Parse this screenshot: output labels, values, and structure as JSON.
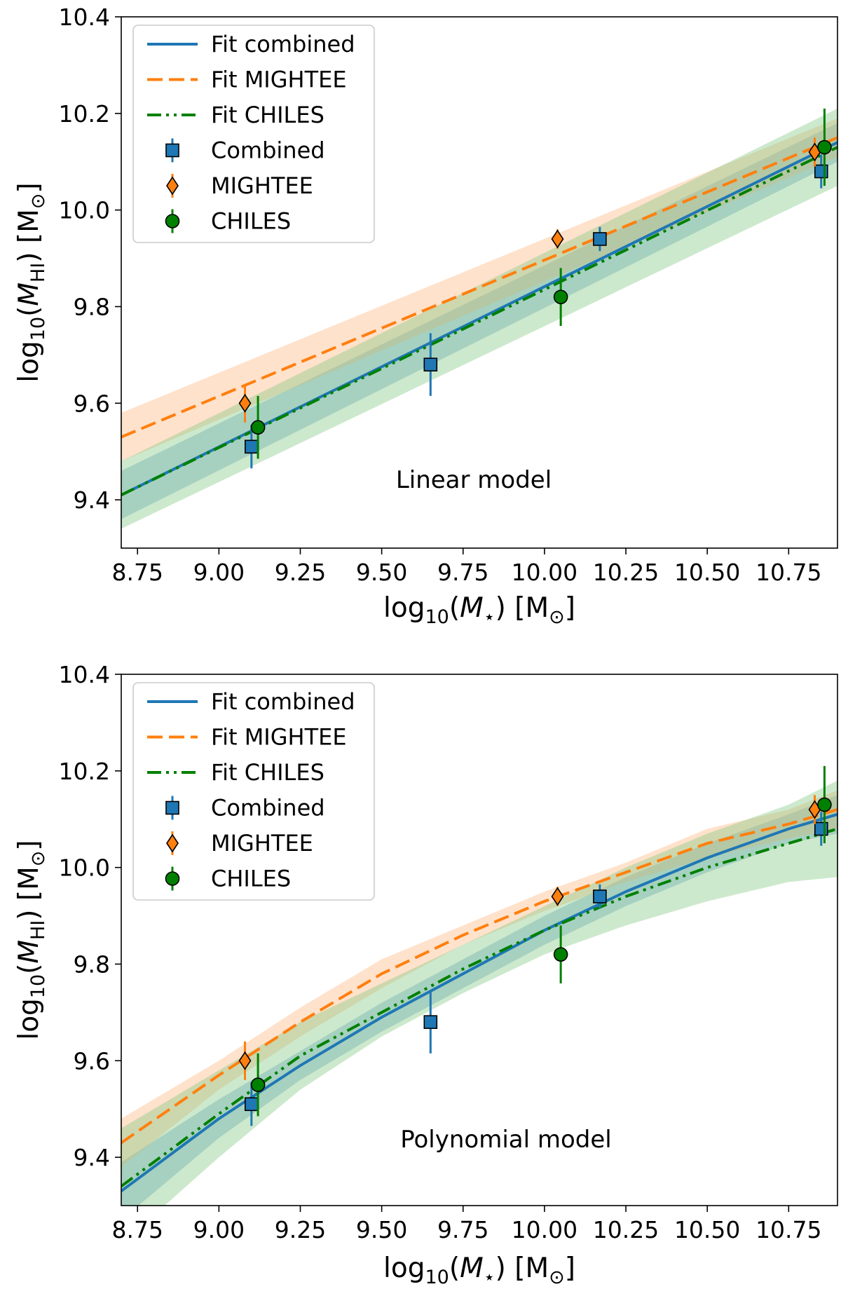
{
  "colors": {
    "combined": "#1f77b4",
    "mightee": "#ff7f0e",
    "chiles": "#008000",
    "combined_band": "#1f77b4",
    "mightee_band": "#ffb27a",
    "chiles_band": "#7cc47c"
  },
  "legend_labels": {
    "fit_combined": "Fit combined",
    "fit_mightee": "Fit MIGHTEE",
    "fit_chiles": "Fit CHILES",
    "combined": "Combined",
    "mightee": "MIGHTEE",
    "chiles": "CHILES"
  },
  "axis_text": {
    "x_log": "log",
    "x_sub": "10",
    "x_var": "(M",
    "x_var_sub": "⋆",
    "x_unit": ") [M",
    "x_unit_sub": "⊙",
    "x_close": "]",
    "y_log": "log",
    "y_sub": "10",
    "y_var": "(M",
    "y_var_sub": "HI",
    "y_unit": ") [M",
    "y_unit_sub": "⊙",
    "y_close": "]"
  },
  "chart_data": [
    {
      "type": "scatter",
      "annotation": "Linear model",
      "xlim": [
        8.7,
        10.9
      ],
      "ylim": [
        9.3,
        10.4
      ],
      "xticks": [
        "8.75",
        "9.00",
        "9.25",
        "9.50",
        "9.75",
        "10.00",
        "10.25",
        "10.50",
        "10.75"
      ],
      "xtick_values": [
        8.75,
        9.0,
        9.25,
        9.5,
        9.75,
        10.0,
        10.25,
        10.5,
        10.75
      ],
      "yticks": [
        "9.4",
        "9.6",
        "9.8",
        "10.0",
        "10.2",
        "10.4"
      ],
      "ytick_values": [
        9.4,
        9.6,
        9.8,
        10.0,
        10.2,
        10.4
      ],
      "legend_position": "upper-left",
      "fits": [
        {
          "key": "combined",
          "name": "Fit combined",
          "style": "solid",
          "x": [
            8.7,
            10.9
          ],
          "y": [
            9.41,
            10.14
          ],
          "band_lo": [
            9.36,
            10.1
          ],
          "band_hi": [
            9.46,
            10.18
          ]
        },
        {
          "key": "mightee",
          "name": "Fit MIGHTEE",
          "style": "dashed",
          "x": [
            8.7,
            10.9
          ],
          "y": [
            9.53,
            10.15
          ],
          "band_lo": [
            9.48,
            10.11
          ],
          "band_hi": [
            9.58,
            10.19
          ]
        },
        {
          "key": "chiles",
          "name": "Fit CHILES",
          "style": "dashdotdot",
          "x": [
            8.7,
            10.9
          ],
          "y": [
            9.41,
            10.13
          ],
          "band_lo": [
            9.34,
            10.05
          ],
          "band_hi": [
            9.48,
            10.21
          ]
        }
      ],
      "points": [
        {
          "key": "combined",
          "name": "Combined",
          "marker": "square",
          "x": [
            9.1,
            9.65,
            10.17,
            10.85
          ],
          "y": [
            9.51,
            9.68,
            9.94,
            10.08
          ],
          "yerr": [
            0.045,
            0.065,
            0.025,
            0.035
          ]
        },
        {
          "key": "mightee",
          "name": "MIGHTEE",
          "marker": "diamond",
          "x": [
            9.08,
            10.04,
            10.83
          ],
          "y": [
            9.6,
            9.94,
            10.12
          ],
          "yerr": [
            0.04,
            0.02,
            0.03
          ]
        },
        {
          "key": "chiles",
          "name": "CHILES",
          "marker": "circle",
          "x": [
            9.12,
            10.05,
            10.86
          ],
          "y": [
            9.55,
            9.82,
            10.13
          ],
          "yerr": [
            0.065,
            0.06,
            0.08
          ]
        }
      ]
    },
    {
      "type": "scatter",
      "annotation": "Polynomial model",
      "xlim": [
        8.7,
        10.9
      ],
      "ylim": [
        9.3,
        10.4
      ],
      "xticks": [
        "8.75",
        "9.00",
        "9.25",
        "9.50",
        "9.75",
        "10.00",
        "10.25",
        "10.50",
        "10.75"
      ],
      "xtick_values": [
        8.75,
        9.0,
        9.25,
        9.5,
        9.75,
        10.0,
        10.25,
        10.5,
        10.75
      ],
      "yticks": [
        "9.4",
        "9.6",
        "9.8",
        "10.0",
        "10.2",
        "10.4"
      ],
      "ytick_values": [
        9.4,
        9.6,
        9.8,
        10.0,
        10.2,
        10.4
      ],
      "legend_position": "upper-left",
      "fits": [
        {
          "key": "combined",
          "name": "Fit combined",
          "style": "solid",
          "x": [
            8.7,
            9.0,
            9.25,
            9.5,
            9.75,
            10.0,
            10.25,
            10.5,
            10.75,
            10.9
          ],
          "y": [
            9.33,
            9.48,
            9.59,
            9.69,
            9.78,
            9.87,
            9.95,
            10.02,
            10.08,
            10.11
          ],
          "band_lo": [
            9.27,
            9.44,
            9.56,
            9.66,
            9.75,
            9.84,
            9.92,
            9.99,
            10.05,
            10.07
          ],
          "band_hi": [
            9.39,
            9.52,
            9.62,
            9.72,
            9.81,
            9.9,
            9.98,
            10.05,
            10.11,
            10.15
          ]
        },
        {
          "key": "mightee",
          "name": "Fit MIGHTEE",
          "style": "dashed",
          "x": [
            8.7,
            9.0,
            9.25,
            9.5,
            9.75,
            10.0,
            10.25,
            10.5,
            10.75,
            10.9
          ],
          "y": [
            9.43,
            9.57,
            9.68,
            9.78,
            9.86,
            9.93,
            9.99,
            10.05,
            10.09,
            10.12
          ],
          "band_lo": [
            9.38,
            9.54,
            9.65,
            9.75,
            9.84,
            9.91,
            9.97,
            10.02,
            10.06,
            10.08
          ],
          "band_hi": [
            9.48,
            9.6,
            9.71,
            9.81,
            9.88,
            9.95,
            10.01,
            10.08,
            10.12,
            10.16
          ]
        },
        {
          "key": "chiles",
          "name": "Fit CHILES",
          "style": "dashdotdot",
          "x": [
            8.7,
            9.0,
            9.25,
            9.5,
            9.75,
            10.0,
            10.25,
            10.5,
            10.75,
            10.9
          ],
          "y": [
            9.34,
            9.49,
            9.61,
            9.7,
            9.79,
            9.87,
            9.94,
            10.0,
            10.05,
            10.08
          ],
          "band_lo": [
            9.22,
            9.4,
            9.54,
            9.65,
            9.74,
            9.82,
            9.88,
            9.93,
            9.97,
            9.98
          ],
          "band_hi": [
            9.46,
            9.58,
            9.68,
            9.76,
            9.84,
            9.92,
            10.0,
            10.07,
            10.13,
            10.18
          ]
        }
      ],
      "points": [
        {
          "key": "combined",
          "name": "Combined",
          "marker": "square",
          "x": [
            9.1,
            9.65,
            10.17,
            10.85
          ],
          "y": [
            9.51,
            9.68,
            9.94,
            10.08
          ],
          "yerr": [
            0.045,
            0.065,
            0.025,
            0.035
          ]
        },
        {
          "key": "mightee",
          "name": "MIGHTEE",
          "marker": "diamond",
          "x": [
            9.08,
            10.04,
            10.83
          ],
          "y": [
            9.6,
            9.94,
            10.12
          ],
          "yerr": [
            0.04,
            0.02,
            0.03
          ]
        },
        {
          "key": "chiles",
          "name": "CHILES",
          "marker": "circle",
          "x": [
            9.12,
            10.05,
            10.86
          ],
          "y": [
            9.55,
            9.82,
            10.13
          ],
          "yerr": [
            0.065,
            0.06,
            0.08
          ]
        }
      ]
    }
  ]
}
